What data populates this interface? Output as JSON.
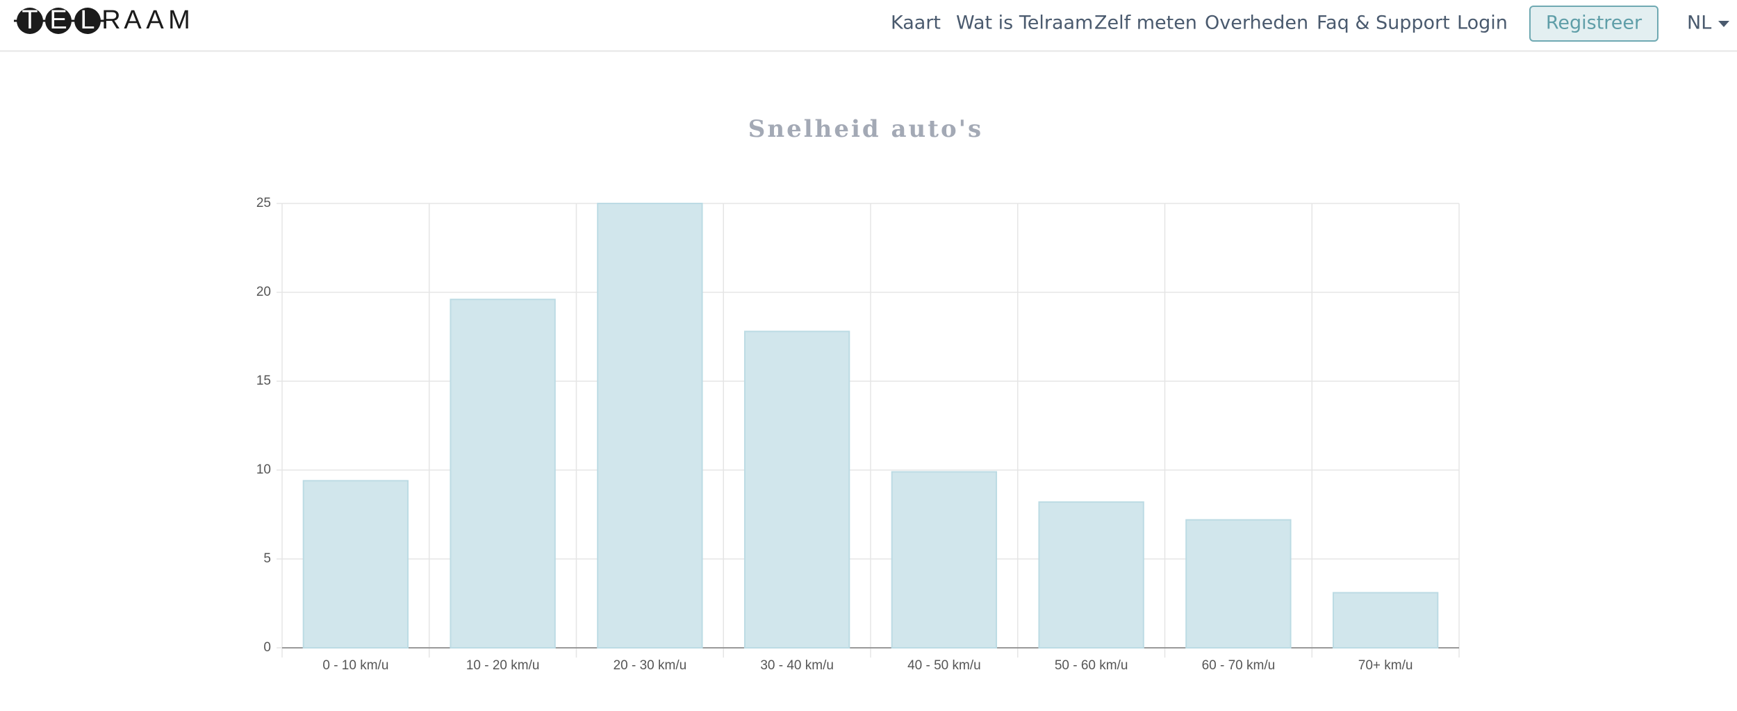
{
  "header": {
    "logo": "TELRAAM",
    "nav": [
      "Kaart",
      "Wat is Telraam",
      "Zelf meten",
      "Overheden",
      "Faq & Support",
      "Login"
    ],
    "button": "Registreer",
    "language": "NL"
  },
  "chart_data": {
    "type": "bar",
    "title": "Snelheid auto's",
    "categories": [
      "0 - 10 km/u",
      "10 - 20 km/u",
      "20 - 30 km/u",
      "30 - 40 km/u",
      "40 - 50 km/u",
      "50 - 60 km/u",
      "60 - 70 km/u",
      "70+ km/u"
    ],
    "values": [
      9.4,
      19.6,
      25,
      17.8,
      9.9,
      8.2,
      7.2,
      3.1
    ],
    "color": "#d1e6ec",
    "ylim": [
      0,
      25
    ],
    "yticks": [
      0,
      5,
      10,
      15,
      20,
      25
    ],
    "grid": true
  }
}
